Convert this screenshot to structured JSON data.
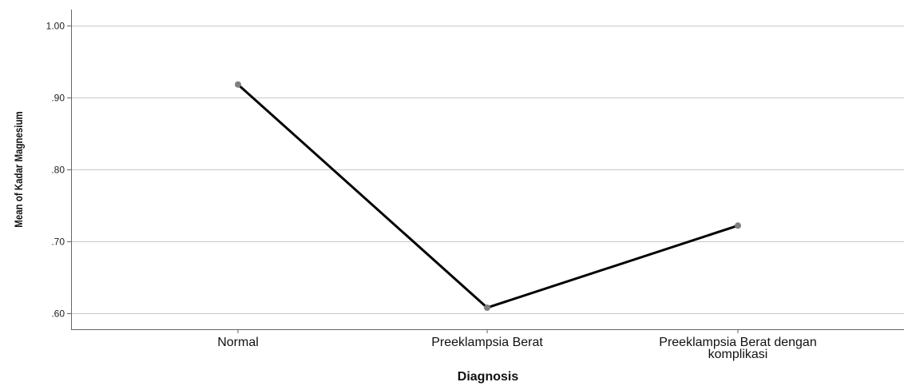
{
  "chart_data": {
    "type": "line",
    "title": "",
    "xlabel": "Diagnosis",
    "ylabel": "Mean of Kadar Magnesium",
    "categories": [
      [
        "Normal"
      ],
      [
        "Preeklampsia Berat"
      ],
      [
        "Preeklampsia Berat dengan",
        "komplikasi"
      ]
    ],
    "series": [
      {
        "values": [
          0.918,
          0.608,
          0.722
        ]
      }
    ],
    "yticks": [
      0.6,
      0.7,
      0.8,
      0.9,
      1.0
    ],
    "ytick_labels": [
      ".60",
      ".70",
      ".80",
      ".90",
      "1.00"
    ],
    "ylim": [
      0.578,
      1.022
    ],
    "grid": true,
    "legend": "none",
    "colors": {
      "line": "#000000",
      "marker": "#7f7f7f",
      "grid": "#c8c8c8",
      "axis": "#666666"
    }
  }
}
